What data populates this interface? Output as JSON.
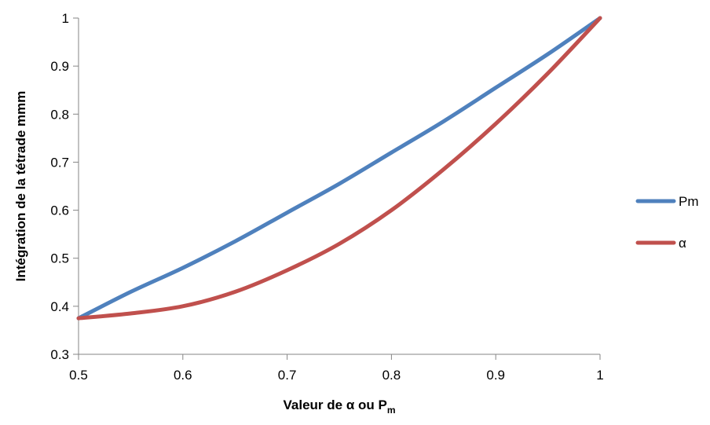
{
  "chart_data": {
    "type": "line",
    "title": "",
    "xlabel": "Valeur de α ou P",
    "xlabel_subscript": "m",
    "ylabel": "Intégration de la tétrade mmm",
    "xlim": [
      0.5,
      1
    ],
    "ylim": [
      0.3,
      1
    ],
    "x_ticks": [
      0.5,
      0.6,
      0.7,
      0.8,
      0.9,
      1
    ],
    "x_tick_labels": [
      "0.5",
      "0.6",
      "0.7",
      "0.8",
      "0.9",
      "1"
    ],
    "y_ticks": [
      0.3,
      0.4,
      0.5,
      0.6,
      0.7,
      0.8,
      0.9,
      1
    ],
    "y_tick_labels": [
      "0.3",
      "0.4",
      "0.5",
      "0.6",
      "0.7",
      "0.8",
      "0.9",
      "1"
    ],
    "grid": false,
    "legend_position": "right",
    "series": [
      {
        "name": "Pm",
        "color": "#4F81BD",
        "x": [
          0.5,
          0.55,
          0.6,
          0.65,
          0.7,
          0.75,
          0.8,
          0.85,
          0.9,
          0.95,
          1.0
        ],
        "y": [
          0.375,
          0.43,
          0.48,
          0.535,
          0.595,
          0.655,
          0.72,
          0.785,
          0.855,
          0.925,
          1.0
        ]
      },
      {
        "name": "α",
        "color": "#C0504D",
        "x": [
          0.5,
          0.55,
          0.6,
          0.65,
          0.7,
          0.75,
          0.8,
          0.85,
          0.9,
          0.95,
          1.0
        ],
        "y": [
          0.375,
          0.385,
          0.4,
          0.43,
          0.475,
          0.53,
          0.6,
          0.685,
          0.78,
          0.885,
          1.0
        ]
      }
    ]
  }
}
